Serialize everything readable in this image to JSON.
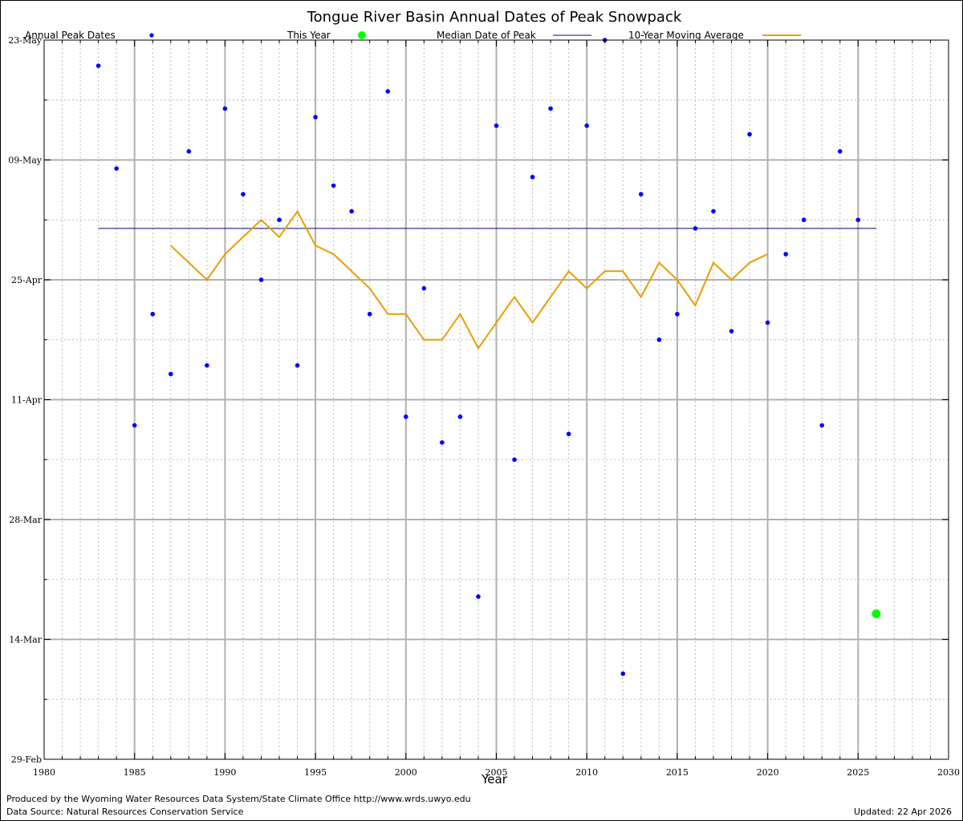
{
  "chart_data": {
    "type": "scatter",
    "title": "Tongue River Basin Annual Dates of Peak Snowpack",
    "xlabel": "Year",
    "ylabel": "",
    "xlim": [
      1980,
      2030
    ],
    "x_ticks": [
      "1980",
      "1985",
      "1990",
      "1995",
      "2000",
      "2005",
      "2010",
      "2015",
      "2020",
      "2025",
      "2030"
    ],
    "ylim_day_of_year": [
      60,
      143
    ],
    "y_ticks": [
      {
        "label": "29-Feb",
        "doy": 60
      },
      {
        "label": "14-Mar",
        "doy": 74
      },
      {
        "label": "28-Mar",
        "doy": 88
      },
      {
        "label": "11-Apr",
        "doy": 102
      },
      {
        "label": "25-Apr",
        "doy": 116
      },
      {
        "label": "09-May",
        "doy": 130
      },
      {
        "label": "23-May",
        "doy": 144
      }
    ],
    "grid": true,
    "legend_placement": "top",
    "legend": {
      "annual_peak": "Annual Peak Dates",
      "this_year": "This Year",
      "median": "Median Date of Peak",
      "moving_avg": "10-Year Moving Average"
    },
    "series": [
      {
        "name": "Annual Peak Dates",
        "color": "#0000ff",
        "x": [
          1983,
          1984,
          1985,
          1986,
          1987,
          1988,
          1989,
          1990,
          1991,
          1992,
          1993,
          1994,
          1995,
          1996,
          1997,
          1998,
          1999,
          2000,
          2001,
          2002,
          2003,
          2004,
          2005,
          2006,
          2007,
          2008,
          2009,
          2010,
          2011,
          2012,
          2013,
          2014,
          2015,
          2016,
          2017,
          2018,
          2019,
          2020,
          2021,
          2022,
          2023,
          2024,
          2025
        ],
        "y": [
          141,
          129,
          99,
          112,
          105,
          131,
          106,
          136,
          126,
          116,
          123,
          106,
          135,
          127,
          124,
          112,
          138,
          100,
          115,
          97,
          100,
          79,
          134,
          95,
          128,
          136,
          98,
          134,
          144,
          70,
          126,
          109,
          112,
          122,
          124,
          110,
          133,
          111,
          119,
          123,
          99,
          131,
          123
        ]
      },
      {
        "name": "This Year",
        "color": "#00ff00",
        "x": [
          2026
        ],
        "y": [
          77
        ]
      },
      {
        "name": "Median Date of Peak",
        "color": "#000080",
        "x": [
          1983,
          2026
        ],
        "y": [
          122,
          122
        ]
      },
      {
        "name": "10-Year Moving Average",
        "color": "#e69f00",
        "x": [
          1987,
          1988,
          1989,
          1990,
          1991,
          1992,
          1993,
          1994,
          1995,
          1996,
          1997,
          1998,
          1999,
          2000,
          2001,
          2002,
          2003,
          2004,
          2005,
          2006,
          2007,
          2008,
          2009,
          2010,
          2011,
          2012,
          2013,
          2014,
          2015,
          2016,
          2017,
          2018,
          2019,
          2020
        ],
        "y": [
          120,
          118,
          116,
          119,
          121,
          123,
          121,
          124,
          120,
          119,
          117,
          115,
          112,
          112,
          109,
          109,
          112,
          108,
          111,
          114,
          111,
          114,
          117,
          115,
          117,
          117,
          114,
          118,
          116,
          113,
          118,
          116,
          118,
          119
        ]
      }
    ]
  },
  "footer": {
    "credit": "Produced by the Wyoming Water Resources Data System/State Climate Office http://www.wrds.uwyo.edu",
    "source": "Data Source: Natural Resources Conservation Service",
    "updated": "Updated: 22 Apr 2026"
  }
}
